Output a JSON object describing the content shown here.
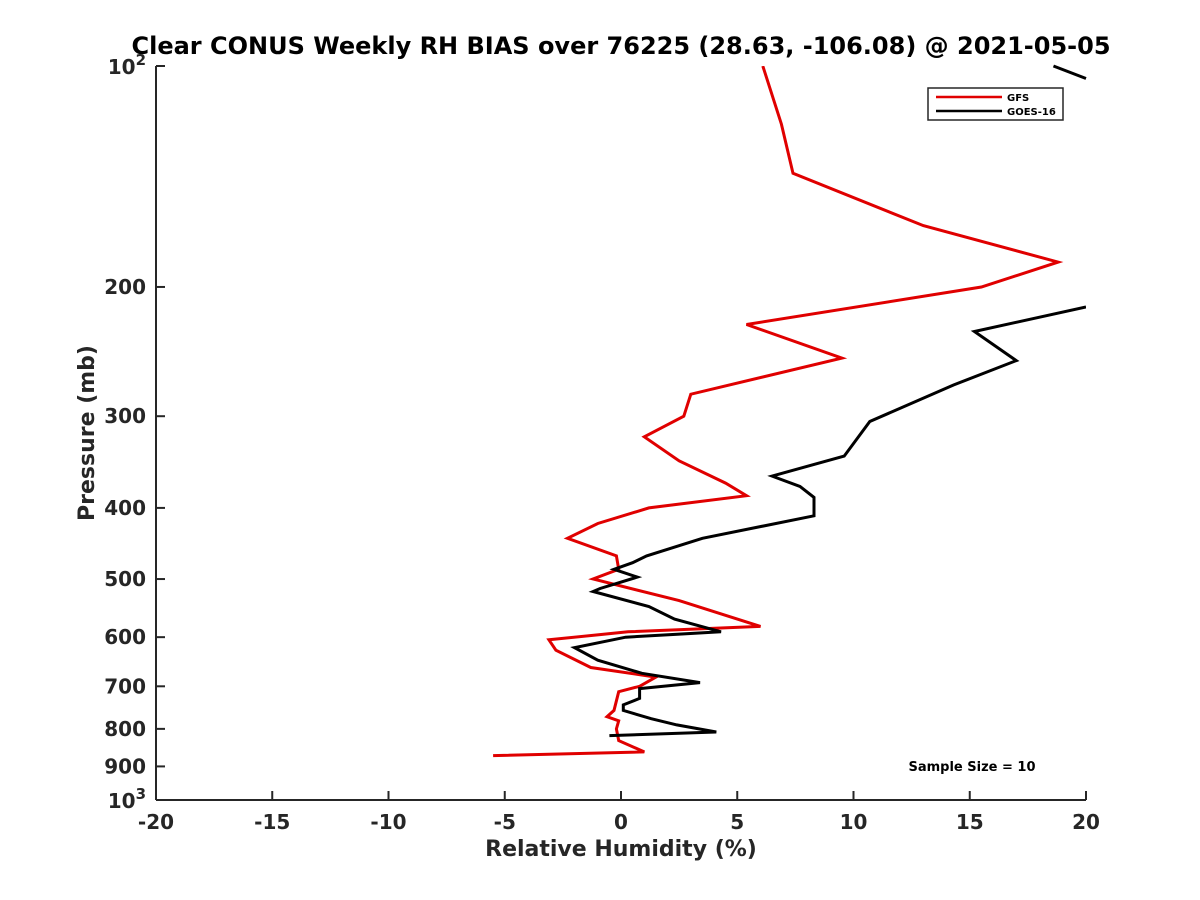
{
  "chart_data": {
    "type": "line",
    "title": "Clear CONUS Weekly RH BIAS over 76225 (28.63, -106.08) @ 2021-05-05",
    "xlabel": "Relative Humidity (%)",
    "ylabel": "Pressure (mb)",
    "xlim": [
      -20,
      20
    ],
    "ylim": [
      100,
      1000
    ],
    "y_scale": "log",
    "y_reversed": true,
    "grid": false,
    "legend_position": "top-right",
    "x_ticks": [
      "-20",
      "-15",
      "-10",
      "-5",
      "0",
      "5",
      "10",
      "15",
      "20"
    ],
    "y_ticks": [
      {
        "value": 100,
        "base": "10",
        "exp": "2"
      },
      {
        "value": 200,
        "label": "200"
      },
      {
        "value": 300,
        "label": "300"
      },
      {
        "value": 400,
        "label": "400"
      },
      {
        "value": 500,
        "label": "500"
      },
      {
        "value": 600,
        "label": "600"
      },
      {
        "value": 700,
        "label": "700"
      },
      {
        "value": 800,
        "label": "800"
      },
      {
        "value": 900,
        "label": "900"
      },
      {
        "value": 1000,
        "base": "10",
        "exp": "3"
      }
    ],
    "series": [
      {
        "name": "GFS",
        "color": "#e00000",
        "points": [
          [
            6.1,
            100
          ],
          [
            6.9,
            120
          ],
          [
            7.4,
            140
          ],
          [
            13,
            165
          ],
          [
            18.8,
            185
          ],
          [
            15.5,
            200
          ],
          [
            5.4,
            225
          ],
          [
            9.5,
            250
          ],
          [
            3,
            280
          ],
          [
            2.7,
            300
          ],
          [
            1,
            320
          ],
          [
            2.5,
            345
          ],
          [
            4.5,
            370
          ],
          [
            5.4,
            385
          ],
          [
            1.2,
            400
          ],
          [
            -1,
            420
          ],
          [
            -2.3,
            440
          ],
          [
            -0.2,
            465
          ],
          [
            -0.1,
            485
          ],
          [
            -1.2,
            500
          ],
          [
            2.5,
            535
          ],
          [
            6,
            580
          ],
          [
            0.3,
            590
          ],
          [
            -3.1,
            605
          ],
          [
            -2.8,
            625
          ],
          [
            -1.3,
            660
          ],
          [
            1.5,
            680
          ],
          [
            0.8,
            700
          ],
          [
            -0.1,
            712
          ],
          [
            -0.3,
            755
          ],
          [
            -0.6,
            770
          ],
          [
            -0.1,
            780
          ],
          [
            -0.2,
            800
          ],
          [
            -0.1,
            830
          ],
          [
            1,
            860
          ],
          [
            -5.5,
            870
          ]
        ]
      },
      {
        "name": "GOES-16",
        "color": "#000000",
        "points": [
          [
            20,
            213
          ],
          [
            15.2,
            230
          ],
          [
            17,
            252
          ],
          [
            14.3,
            272
          ],
          [
            10.7,
            305
          ],
          [
            9.6,
            340
          ],
          [
            6.5,
            362
          ],
          [
            7.7,
            374
          ],
          [
            8.3,
            387
          ],
          [
            8.3,
            410
          ],
          [
            3.5,
            440
          ],
          [
            1.1,
            465
          ],
          [
            0.5,
            475
          ],
          [
            -0.3,
            485
          ],
          [
            0.7,
            497
          ],
          [
            -0.9,
            515
          ],
          [
            -1.2,
            520
          ],
          [
            1.2,
            545
          ],
          [
            2.3,
            567
          ],
          [
            4.3,
            590
          ],
          [
            0.2,
            600
          ],
          [
            -2,
            620
          ],
          [
            -1,
            645
          ],
          [
            0.9,
            672
          ],
          [
            3.4,
            692
          ],
          [
            0.8,
            705
          ],
          [
            0.8,
            727
          ],
          [
            0.1,
            742
          ],
          [
            0.1,
            755
          ],
          [
            1.3,
            775
          ],
          [
            2.4,
            790
          ],
          [
            4.1,
            808
          ],
          [
            -0.5,
            817
          ]
        ]
      }
    ],
    "extra_segment": {
      "series": "GOES-16",
      "from": [
        18.6,
        100
      ],
      "to": [
        20,
        104
      ]
    },
    "annotation": "Sample Size = 10"
  }
}
